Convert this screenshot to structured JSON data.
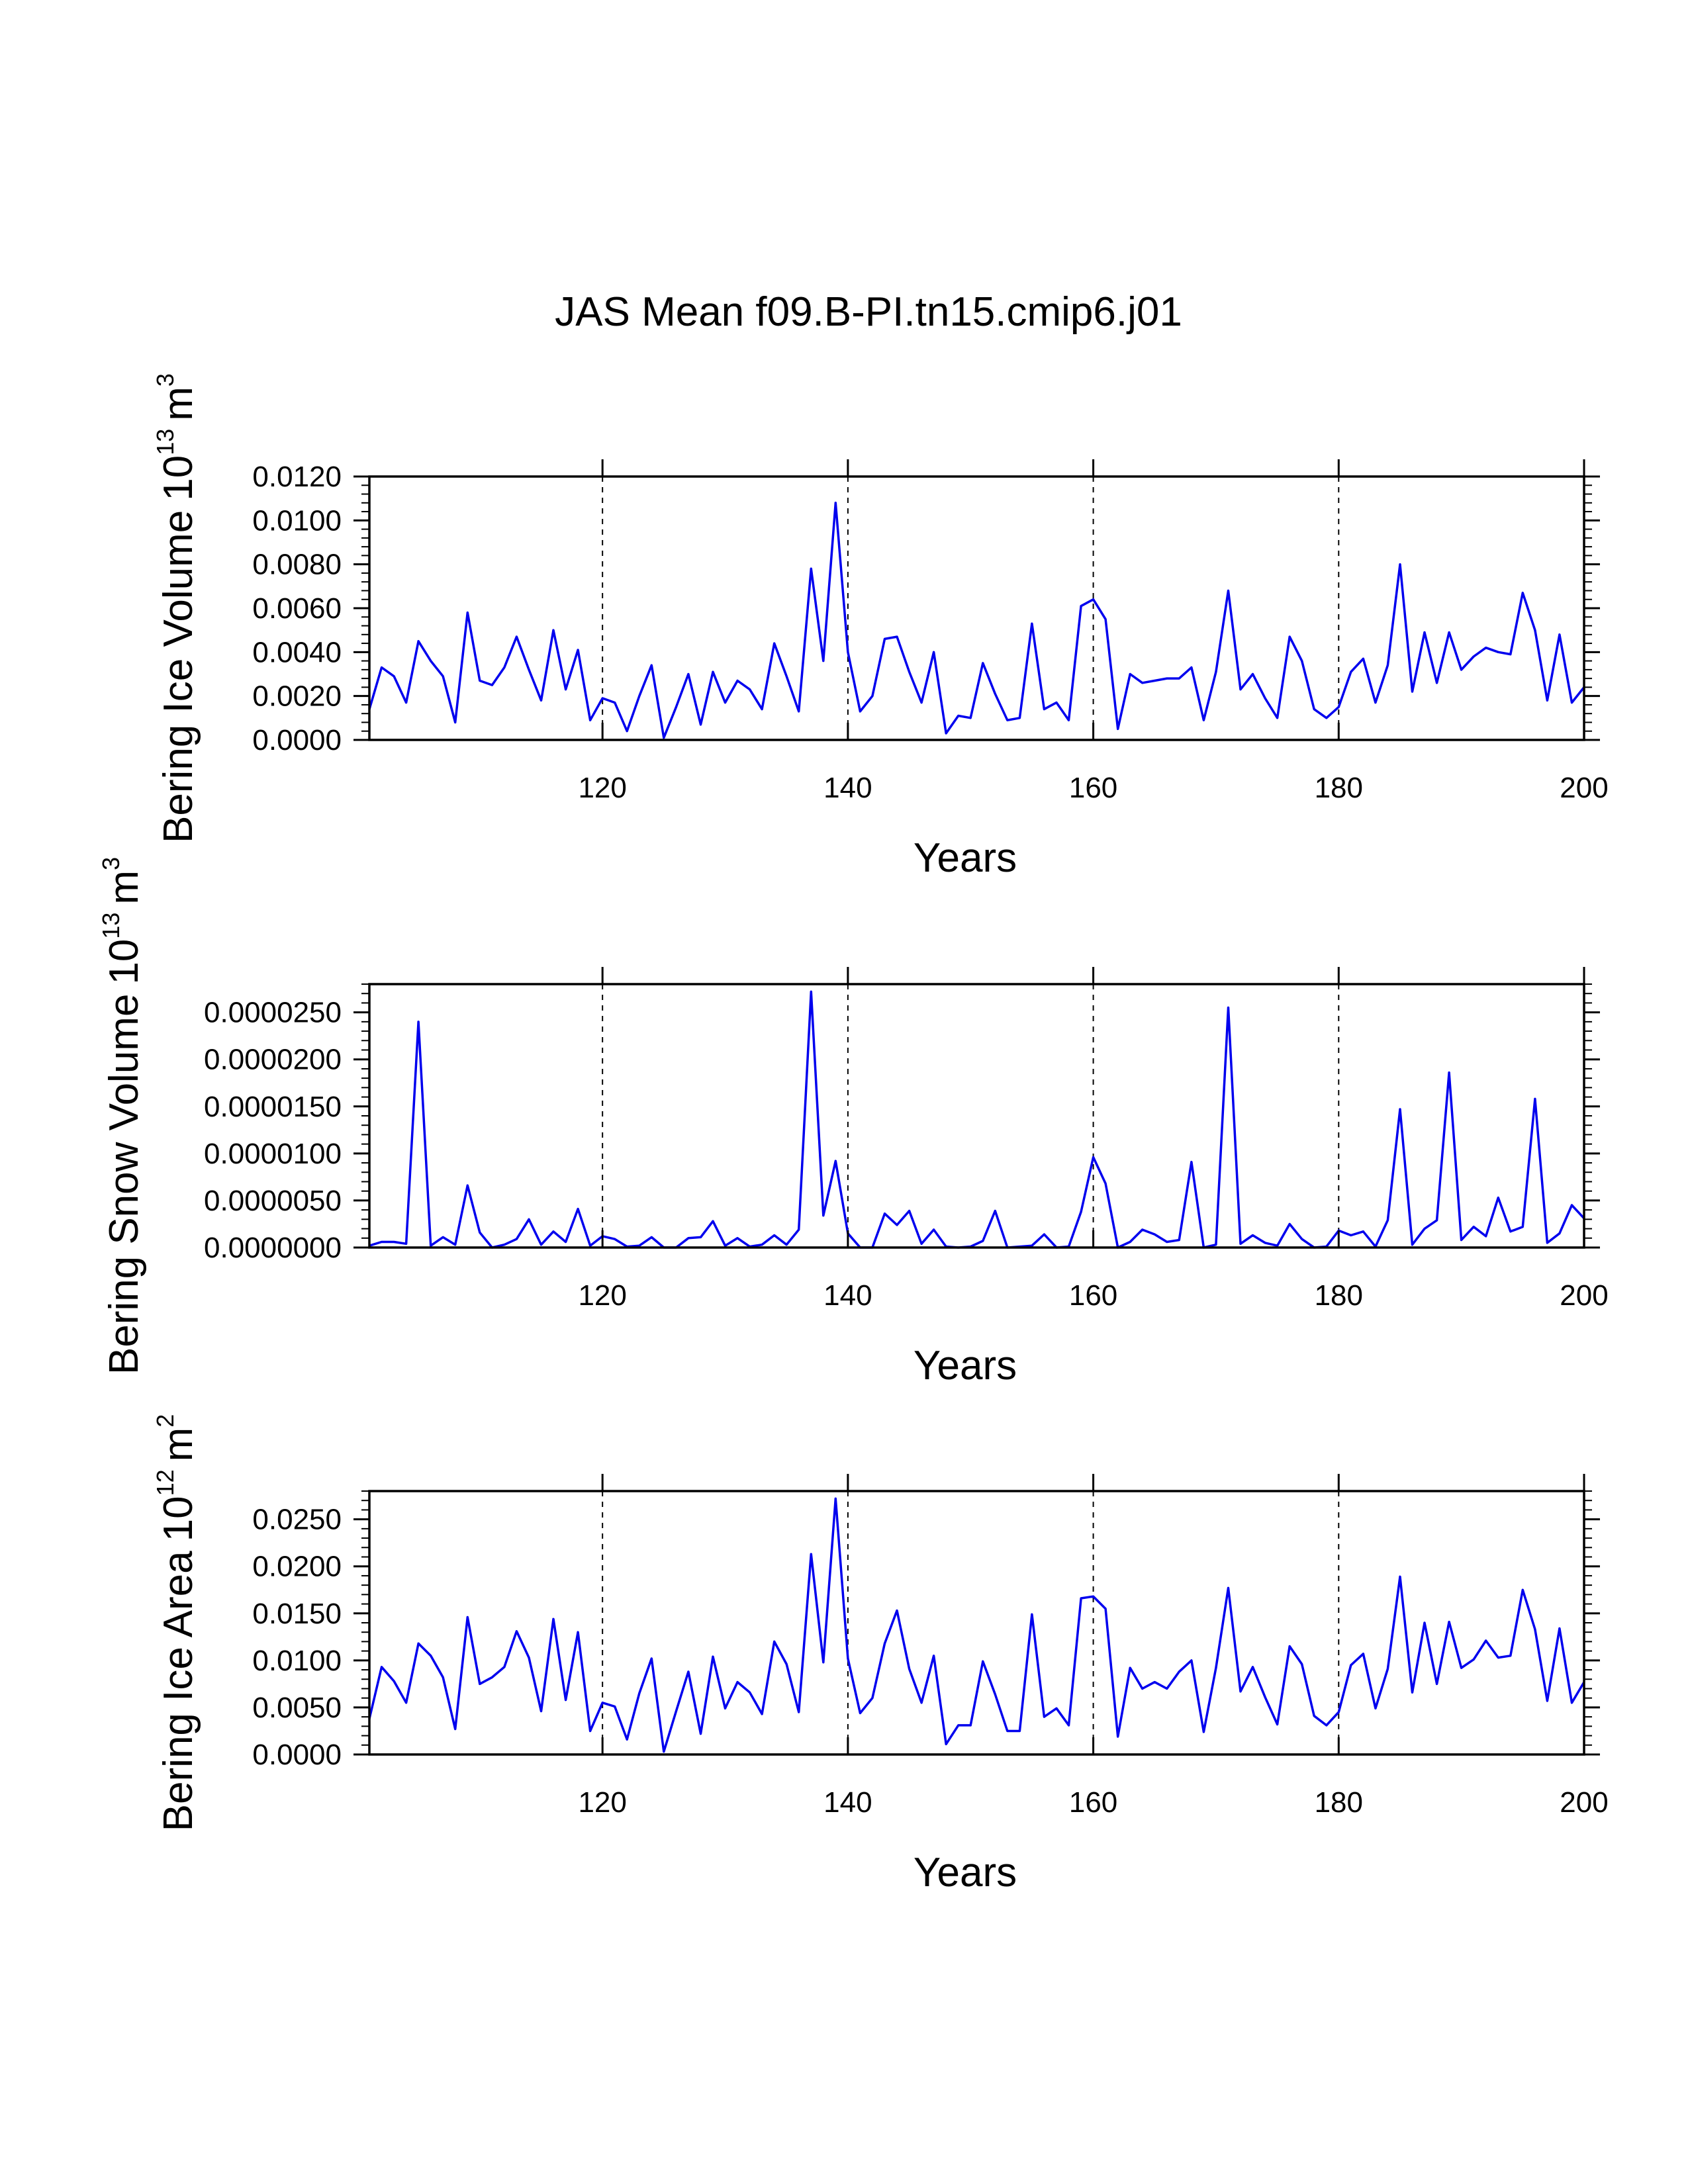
{
  "figure_title": "JAS Mean f09.B-PI.tn15.cmip6.j01",
  "series_color": "#0000ee",
  "chart_data": [
    {
      "type": "line",
      "ylabel": "Bering Ice Volume",
      "yunit_base": "10",
      "yunit_exp": "13",
      "yunit_suffix": "m",
      "yunit_suffix_exp": "3",
      "xlabel": "Years",
      "xlim": [
        101,
        200
      ],
      "ylim": [
        0,
        0.012
      ],
      "xticks": [
        120,
        140,
        160,
        180,
        200
      ],
      "xtick_labels": [
        "120",
        "140",
        "160",
        "180",
        "200"
      ],
      "yticks": [
        0,
        0.002,
        0.004,
        0.006,
        0.008,
        0.01,
        0.012
      ],
      "ytick_labels": [
        "0.0000",
        "0.0020",
        "0.0040",
        "0.0060",
        "0.0080",
        "0.0100",
        "0.0120"
      ],
      "grid_x": [
        120,
        140,
        160,
        180
      ],
      "x_start": 101,
      "values": [
        0.0014,
        0.0033,
        0.0029,
        0.0017,
        0.0045,
        0.0036,
        0.0029,
        0.0008,
        0.0058,
        0.0027,
        0.0025,
        0.0033,
        0.0047,
        0.0032,
        0.0018,
        0.005,
        0.0023,
        0.0041,
        0.0009,
        0.0019,
        0.0017,
        0.0004,
        0.002,
        0.0034,
        0.0001,
        0.0015,
        0.003,
        0.0007,
        0.0031,
        0.0017,
        0.0027,
        0.0023,
        0.0014,
        0.0044,
        0.0029,
        0.0013,
        0.0078,
        0.0036,
        0.0108,
        0.004,
        0.0013,
        0.002,
        0.0046,
        0.0047,
        0.0031,
        0.0017,
        0.004,
        0.0003,
        0.0011,
        0.001,
        0.0035,
        0.0021,
        0.0009,
        0.001,
        0.0053,
        0.0014,
        0.0017,
        0.0009,
        0.0061,
        0.0064,
        0.0055,
        0.0005,
        0.003,
        0.0026,
        0.0027,
        0.0028,
        0.0028,
        0.0033,
        0.0009,
        0.0031,
        0.0068,
        0.0023,
        0.003,
        0.0019,
        0.001,
        0.0047,
        0.0036,
        0.0014,
        0.001,
        0.0015,
        0.0031,
        0.0037,
        0.0017,
        0.0034,
        0.008,
        0.0022,
        0.0049,
        0.0026,
        0.0049,
        0.0032,
        0.0038,
        0.0042,
        0.004,
        0.0039,
        0.0067,
        0.005,
        0.0018,
        0.0048,
        0.0017,
        0.0024
      ]
    },
    {
      "type": "line",
      "ylabel": "Bering Snow Volume",
      "yunit_base": "10",
      "yunit_exp": "13",
      "yunit_suffix": "m",
      "yunit_suffix_exp": "3",
      "xlabel": "Years",
      "xlim": [
        101,
        200
      ],
      "ylim": [
        0,
        2.8e-05
      ],
      "xticks": [
        120,
        140,
        160,
        180,
        200
      ],
      "xtick_labels": [
        "120",
        "140",
        "160",
        "180",
        "200"
      ],
      "yticks": [
        0,
        5e-06,
        1e-05,
        1.5e-05,
        2e-05,
        2.5e-05
      ],
      "ytick_labels": [
        "0.0000000",
        "0.0000050",
        "0.0000100",
        "0.0000150",
        "0.0000200",
        "0.0000250"
      ],
      "grid_x": [
        120,
        140,
        160,
        180
      ],
      "x_start": 101,
      "values": [
        2e-07,
        6e-07,
        6e-07,
        4e-07,
        2.4e-05,
        2e-07,
        1.1e-06,
        3e-07,
        6.6e-06,
        1.6e-06,
        0.0,
        3e-07,
        9e-07,
        3e-06,
        3e-07,
        1.7e-06,
        6e-07,
        4.1e-06,
        2e-07,
        1.2e-06,
        9e-07,
        1e-07,
        2e-07,
        1.1e-06,
        0.0,
        0.0,
        1e-06,
        1.1e-06,
        2.8e-06,
        2e-07,
        1e-06,
        1e-07,
        3e-07,
        1.3e-06,
        3e-07,
        1.9e-06,
        2.72e-05,
        3.4e-06,
        9.2e-06,
        1.5e-06,
        0.0,
        0.0,
        3.6e-06,
        2.4e-06,
        3.9e-06,
        4e-07,
        1.9e-06,
        1e-07,
        0.0,
        1e-07,
        7e-07,
        3.9e-06,
        0.0,
        1e-07,
        2e-07,
        1.4e-06,
        0.0,
        1e-07,
        3.8e-06,
        9.6e-06,
        6.8e-06,
        0.0,
        6e-07,
        1.9e-06,
        1.4e-06,
        6e-07,
        8e-07,
        9.1e-06,
        0.0,
        3e-07,
        2.55e-05,
        4e-07,
        1.3e-06,
        5e-07,
        2e-07,
        2.5e-06,
        9e-07,
        0.0,
        1e-07,
        1.8e-06,
        1.3e-06,
        1.7e-06,
        1e-07,
        2.9e-06,
        1.47e-05,
        3e-07,
        2e-06,
        2.9e-06,
        1.86e-05,
        8e-07,
        2.2e-06,
        1.2e-06,
        5.3e-06,
        1.7e-06,
        2.2e-06,
        1.58e-05,
        5e-07,
        1.5e-06,
        4.5e-06,
        3.1e-06
      ]
    },
    {
      "type": "line",
      "ylabel": "Bering Ice Area",
      "yunit_base": "10",
      "yunit_exp": "12",
      "yunit_suffix": "m",
      "yunit_suffix_exp": "2",
      "xlabel": "Years",
      "xlim": [
        101,
        200
      ],
      "ylim": [
        0,
        0.028
      ],
      "xticks": [
        120,
        140,
        160,
        180,
        200
      ],
      "xtick_labels": [
        "120",
        "140",
        "160",
        "180",
        "200"
      ],
      "yticks": [
        0,
        0.005,
        0.01,
        0.015,
        0.02,
        0.025
      ],
      "ytick_labels": [
        "0.0000",
        "0.0050",
        "0.0100",
        "0.0150",
        "0.0200",
        "0.0250"
      ],
      "grid_x": [
        120,
        140,
        160,
        180
      ],
      "x_start": 101,
      "values": [
        0.0038,
        0.0093,
        0.0078,
        0.0055,
        0.0118,
        0.0105,
        0.0082,
        0.0027,
        0.0146,
        0.0075,
        0.0082,
        0.0093,
        0.0131,
        0.0103,
        0.0046,
        0.0144,
        0.0058,
        0.013,
        0.0025,
        0.0055,
        0.0051,
        0.0016,
        0.0065,
        0.0102,
        0.0003,
        0.0046,
        0.0088,
        0.0022,
        0.0104,
        0.0049,
        0.0077,
        0.0066,
        0.0043,
        0.012,
        0.0096,
        0.0045,
        0.0213,
        0.0098,
        0.0272,
        0.0102,
        0.0044,
        0.006,
        0.0118,
        0.0153,
        0.0091,
        0.0055,
        0.0105,
        0.0011,
        0.0031,
        0.0031,
        0.0099,
        0.0064,
        0.0025,
        0.0025,
        0.0149,
        0.004,
        0.0049,
        0.0031,
        0.0166,
        0.0168,
        0.0155,
        0.0019,
        0.0092,
        0.007,
        0.0077,
        0.007,
        0.0088,
        0.01,
        0.0024,
        0.0092,
        0.0177,
        0.0067,
        0.0093,
        0.0061,
        0.0032,
        0.0115,
        0.0096,
        0.0041,
        0.0031,
        0.0045,
        0.0095,
        0.0107,
        0.0049,
        0.0091,
        0.0189,
        0.0066,
        0.014,
        0.0075,
        0.0141,
        0.0092,
        0.0101,
        0.0121,
        0.0103,
        0.0105,
        0.0175,
        0.0133,
        0.0057,
        0.0134,
        0.0055,
        0.0077
      ]
    }
  ]
}
